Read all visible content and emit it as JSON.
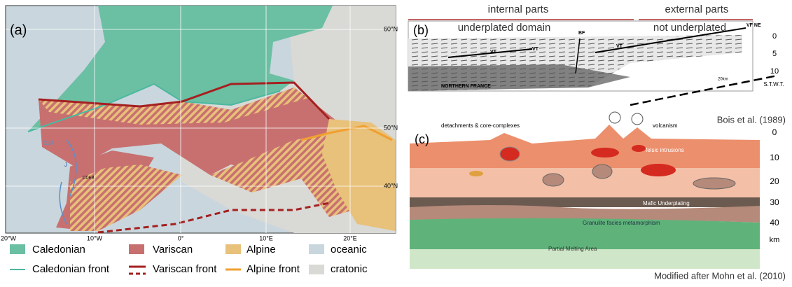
{
  "panel_a": {
    "label": "(a)",
    "lat_labels": [
      "60°N",
      "50°N",
      "40°N"
    ],
    "lon_labels": [
      "20°W",
      "10°W",
      "0°",
      "10°E",
      "20°E"
    ],
    "map_texts": [
      "C34",
      "J",
      "CDEB"
    ],
    "legend": [
      "Caledonian",
      "Variscan",
      "Alpine",
      "oceanic",
      "Caledonian front",
      "Variscan front",
      "Alpine front",
      "cratonic"
    ]
  },
  "panel_b": {
    "label": "(b)",
    "header_left": "internal parts",
    "header_right": "external parts",
    "sub_left": "underplated domain",
    "sub_right": "not underplated",
    "image_texts": [
      "BF",
      "VF NE",
      "VT",
      "VT",
      "VT",
      "NORTHERN FRANCE",
      "20km"
    ],
    "depth_ticks": [
      "0",
      "5",
      "10"
    ],
    "depth_unit": "S.T.W.T.",
    "credit": "Bois et al. (1989)"
  },
  "panel_c": {
    "label": "(c)",
    "annotations": [
      "detachments & core-complexes",
      "volcanism",
      "felsic intrusions",
      "Mafic Underplating",
      "Granulite facies metamorphism",
      "Partial Melting Area"
    ],
    "depth_ticks": [
      "0",
      "10",
      "20",
      "30",
      "40"
    ],
    "depth_unit": "km",
    "credit": "Modified after Mohn et al. (2010)"
  }
}
